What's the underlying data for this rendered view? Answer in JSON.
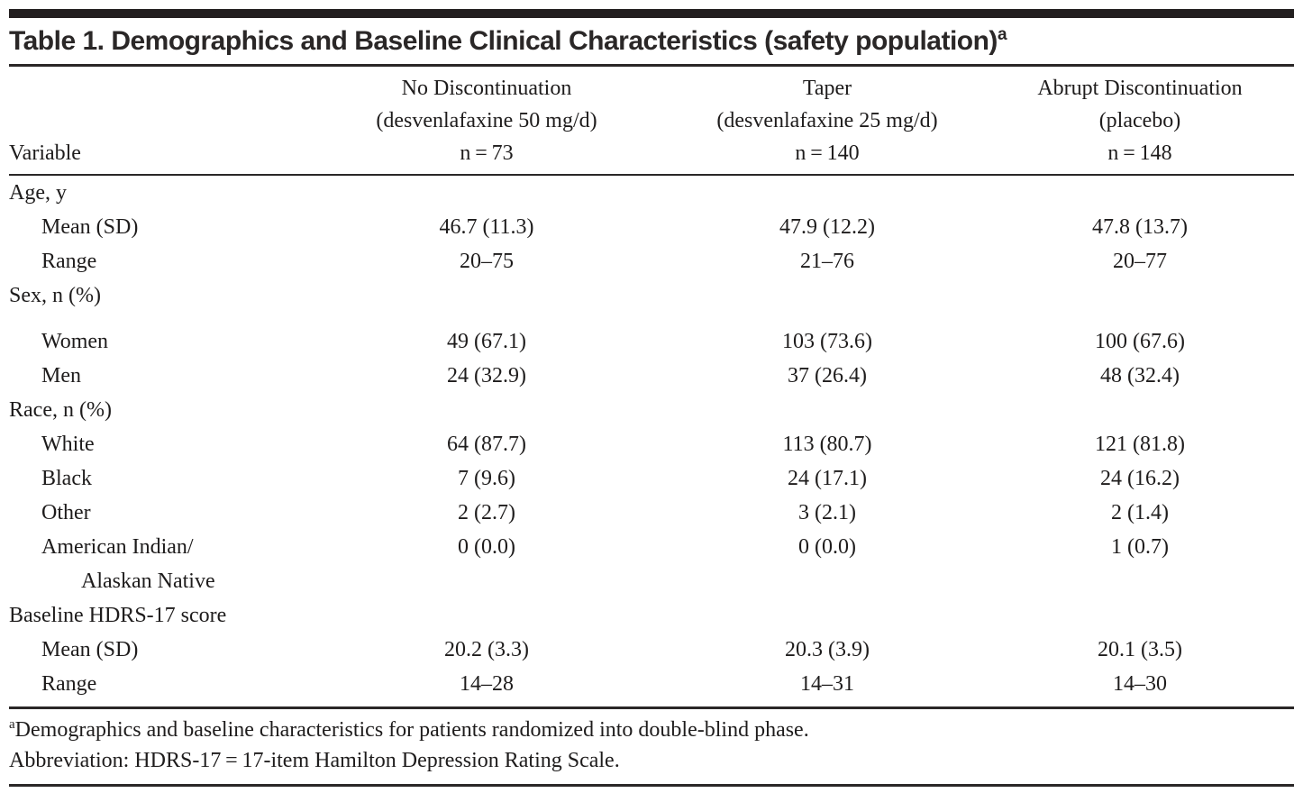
{
  "colors": {
    "text": "#1e1c1c",
    "rules": "#231f20",
    "background": "#ffffff"
  },
  "header": {
    "title": "Table 1. Demographics and Baseline Clinical Characteristics (safety population)",
    "title_sup": "a"
  },
  "table": {
    "variable_header": "Variable",
    "columns": [
      {
        "line1": "No Discontinuation",
        "line2": "(desvenlafaxine 50 mg/d)",
        "line3": "n = 73"
      },
      {
        "line1": "Taper",
        "line2": "(desvenlafaxine 25 mg/d)",
        "line3": "n = 140"
      },
      {
        "line1": "Abrupt Discontinuation",
        "line2": "(placebo)",
        "line3": "n = 148"
      }
    ],
    "rows": [
      {
        "label": "Age, y",
        "values": [
          "",
          "",
          ""
        ]
      },
      {
        "label": "Mean (SD)",
        "values": [
          "46.7 (11.3)",
          "47.9 (12.2)",
          "47.8 (13.7)"
        ]
      },
      {
        "label": "Range",
        "values": [
          "20–75",
          "21–76",
          "20–77"
        ]
      },
      {
        "label": "Sex, n (%)",
        "values": [
          "",
          "",
          ""
        ]
      },
      {
        "label": "Women",
        "values": [
          "49 (67.1)",
          "103 (73.6)",
          "100 (67.6)"
        ]
      },
      {
        "label": "Men",
        "values": [
          "24 (32.9)",
          "37 (26.4)",
          "48 (32.4)"
        ]
      },
      {
        "label": "Race, n (%)",
        "values": [
          "",
          "",
          ""
        ]
      },
      {
        "label": "White",
        "values": [
          "64 (87.7)",
          "113 (80.7)",
          "121 (81.8)"
        ]
      },
      {
        "label": "Black",
        "values": [
          "7 (9.6)",
          "24 (17.1)",
          "24 (16.2)"
        ]
      },
      {
        "label": "Other",
        "values": [
          "2 (2.7)",
          "3 (2.1)",
          "2 (1.4)"
        ]
      },
      {
        "label": "American Indian/",
        "values": [
          "0 (0.0)",
          "0 (0.0)",
          "1 (0.7)"
        ]
      },
      {
        "label": "Alaskan Native",
        "values": [
          "",
          "",
          ""
        ]
      },
      {
        "label": "Baseline HDRS-17 score",
        "values": [
          "",
          "",
          ""
        ]
      },
      {
        "label": "Mean (SD)",
        "values": [
          "20.2 (3.3)",
          "20.3 (3.9)",
          "20.1 (3.5)"
        ]
      },
      {
        "label": "Range",
        "values": [
          "14–28",
          "14–31",
          "14–30"
        ]
      }
    ]
  },
  "footnotes": [
    {
      "sup": "a",
      "text": "Demographics and baseline characteristics for patients randomized into double-blind phase."
    },
    {
      "sup": "",
      "text": "Abbreviation: HDRS-17 = 17-item Hamilton Depression Rating Scale."
    }
  ]
}
